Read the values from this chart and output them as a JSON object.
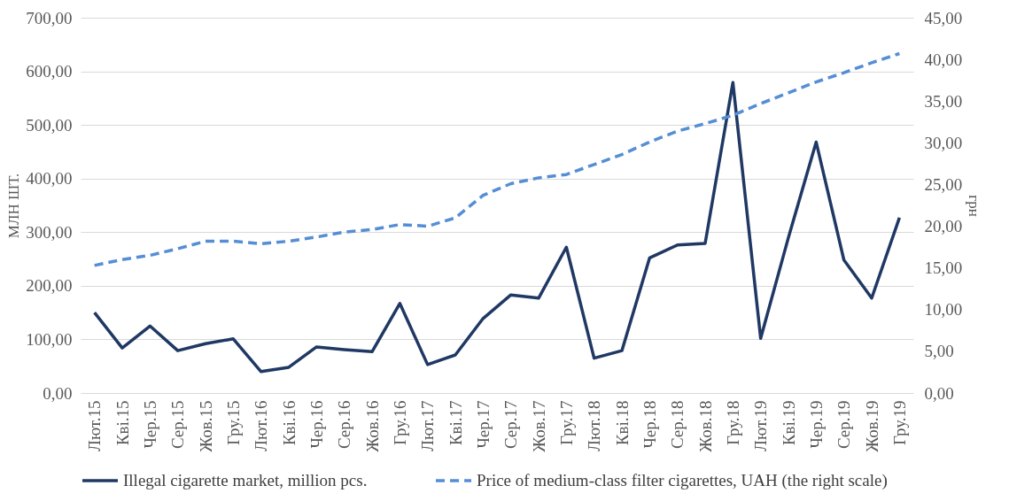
{
  "chart_data": {
    "type": "line",
    "categories": [
      "Лют.15",
      "Кві.15",
      "Чер.15",
      "Сер.15",
      "Жов.15",
      "Гру.15",
      "Лют.16",
      "Кві.16",
      "Чер.16",
      "Сер.16",
      "Жов.16",
      "Гру.16",
      "Лют.17",
      "Кві.17",
      "Чер.17",
      "Сер.17",
      "Жов.17",
      "Гру.17",
      "Лют.18",
      "Кві.18",
      "Чер.18",
      "Сер.18",
      "Жов.18",
      "Гру.18",
      "Лют.19",
      "Кві.19",
      "Чер.19",
      "Сер.19",
      "Жов.19",
      "Гру.19"
    ],
    "ylabel": "МЛН ШТ.",
    "y2label": "грн",
    "ylim": [
      0,
      700
    ],
    "yticks": [
      {
        "value": 0,
        "label": "0,00"
      },
      {
        "value": 100,
        "label": "100,00"
      },
      {
        "value": 200,
        "label": "200,00"
      },
      {
        "value": 300,
        "label": "300,00"
      },
      {
        "value": 400,
        "label": "400,00"
      },
      {
        "value": 500,
        "label": "500,00"
      },
      {
        "value": 600,
        "label": "600,00"
      },
      {
        "value": 700,
        "label": "700,00"
      }
    ],
    "y2lim": [
      0,
      45
    ],
    "y2ticks": [
      {
        "value": 0,
        "label": "0,00"
      },
      {
        "value": 5,
        "label": "5,00"
      },
      {
        "value": 10,
        "label": "10,00"
      },
      {
        "value": 15,
        "label": "15,00"
      },
      {
        "value": 20,
        "label": "20,00"
      },
      {
        "value": 25,
        "label": "25,00"
      },
      {
        "value": 30,
        "label": "30,00"
      },
      {
        "value": 35,
        "label": "35,00"
      },
      {
        "value": 40,
        "label": "40,00"
      },
      {
        "value": 45,
        "label": "45,00"
      }
    ],
    "grid": "y",
    "legend": "bottom",
    "series": [
      {
        "name": "Illegal cigarette market, million pcs.",
        "color": "#1f3864",
        "line_style": "solid",
        "values": [
          150,
          84,
          125,
          79,
          92,
          101,
          40,
          48,
          86,
          81,
          77,
          167,
          53,
          71,
          139,
          183,
          177,
          272,
          65,
          79,
          252,
          276,
          279,
          579,
          102,
          290,
          468,
          248,
          177,
          327
        ]
      },
      {
        "name": "Price of medium-class filter cigarettes, UAH (the right scale)",
        "color": "#558ed5",
        "line_style": "dashed",
        "axis": "y2",
        "values": [
          15.3,
          16.0,
          16.5,
          17.3,
          18.2,
          18.2,
          17.9,
          18.2,
          18.7,
          19.3,
          19.6,
          20.2,
          20.0,
          21.0,
          23.7,
          25.1,
          25.8,
          26.2,
          27.4,
          28.6,
          30.1,
          31.4,
          32.3,
          33.3,
          34.7,
          36.0,
          37.3,
          38.4,
          39.6,
          40.7
        ]
      }
    ]
  }
}
